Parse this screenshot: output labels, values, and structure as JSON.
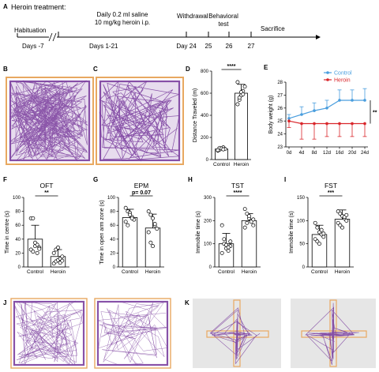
{
  "panels": {
    "A": "A",
    "B": "B",
    "C": "C",
    "D": "D",
    "E": "E",
    "F": "F",
    "G": "G",
    "H": "H",
    "I": "I",
    "J": "J",
    "K": "K"
  },
  "timeline": {
    "heading": "Heroin treatment:",
    "habituation": "Habituation",
    "habituation_days": "Days -7",
    "treatment_line1": "Daily 0.2 ml saline",
    "treatment_line2": "10 mg/kg heroin i.p.",
    "treatment_days": "Days 1-21",
    "withdrawal": "Withdrawal",
    "behavioral_line1": "Behavioral",
    "behavioral_line2": "test",
    "sacrifice": "Sacrifice",
    "day24": "Day 24",
    "d25": "25",
    "d26": "26",
    "d27": "27"
  },
  "colors": {
    "track": "#7b3f9e",
    "arena_border": "#e8a860",
    "control_line": "#4a9ede",
    "heroin_line": "#d9262b",
    "bar": "#ffffff",
    "maze_bg": "#e6e6e6"
  },
  "chart_data": [
    {
      "id": "D",
      "type": "bar",
      "ylabel": "Distance Traveled (m)",
      "categories": [
        "Control",
        "Heroin"
      ],
      "values": [
        95,
        600
      ],
      "errors": [
        15,
        80
      ],
      "ylim": [
        0,
        800
      ],
      "yticks": [
        0,
        200,
        400,
        600,
        800
      ],
      "points": [
        [
          80,
          90,
          100,
          110,
          95,
          85,
          105,
          100,
          92
        ],
        [
          500,
          540,
          580,
          620,
          660,
          700,
          560,
          610,
          590
        ]
      ],
      "significance": "****"
    },
    {
      "id": "E",
      "type": "line",
      "ylabel": "Body weight (g)",
      "categories": [
        "0d",
        "4d",
        "8d",
        "12d",
        "16d",
        "20d",
        "24d"
      ],
      "ylim": [
        23,
        28
      ],
      "yticks": [
        23,
        24,
        25,
        26,
        27,
        28
      ],
      "series": [
        {
          "name": "Control",
          "values": [
            25.2,
            25.5,
            25.8,
            26.0,
            26.6,
            26.6,
            26.6
          ],
          "errors": [
            0.3,
            0.6,
            0.6,
            0.6,
            0.8,
            0.8,
            0.9
          ]
        },
        {
          "name": "Heroin",
          "values": [
            25.0,
            24.8,
            24.8,
            24.8,
            24.8,
            24.8,
            24.8
          ],
          "errors": [
            0.5,
            1.2,
            1.2,
            1.0,
            1.0,
            1.0,
            1.0
          ]
        }
      ],
      "significance": "**"
    },
    {
      "id": "F",
      "type": "bar",
      "title": "OFT",
      "ylabel": "Time in centre (s)",
      "categories": [
        "Control",
        "Heroin"
      ],
      "values": [
        40,
        15
      ],
      "errors": [
        20,
        10
      ],
      "ylim": [
        0,
        100
      ],
      "yticks": [
        0,
        20,
        40,
        60,
        80,
        100
      ],
      "points": [
        [
          70,
          70,
          30,
          32,
          28,
          25,
          22,
          35,
          20,
          26
        ],
        [
          5,
          8,
          10,
          12,
          15,
          20,
          25,
          28,
          6,
          9
        ]
      ],
      "significance": "**"
    },
    {
      "id": "G",
      "type": "bar",
      "title": "EPM",
      "ylabel": "Time in open arm zone (s)",
      "categories": [
        "Control",
        "Heroin"
      ],
      "values": [
        71,
        56
      ],
      "errors": [
        12,
        20
      ],
      "ylim": [
        0,
        100
      ],
      "yticks": [
        0,
        20,
        40,
        60,
        80,
        100
      ],
      "points": [
        [
          85,
          80,
          78,
          72,
          68,
          65,
          60,
          75,
          70
        ],
        [
          80,
          75,
          70,
          60,
          55,
          50,
          35,
          30,
          62
        ]
      ],
      "significance": "p= 0.07"
    },
    {
      "id": "H",
      "type": "bar",
      "title": "TST",
      "ylabel": "Immobile time (s)",
      "categories": [
        "Control",
        "Heroin"
      ],
      "values": [
        100,
        200
      ],
      "errors": [
        45,
        30
      ],
      "ylim": [
        0,
        300
      ],
      "yticks": [
        0,
        100,
        200,
        300
      ],
      "points": [
        [
          180,
          120,
          80,
          70,
          90,
          60,
          100,
          95,
          85,
          110
        ],
        [
          250,
          230,
          210,
          200,
          180,
          170,
          190,
          220,
          195,
          205
        ]
      ],
      "significance": "****"
    },
    {
      "id": "I",
      "type": "bar",
      "title": "FST",
      "ylabel": "Immobile time (s)",
      "categories": [
        "Control",
        "Heroin"
      ],
      "values": [
        70,
        103
      ],
      "errors": [
        20,
        20
      ],
      "ylim": [
        0,
        150
      ],
      "yticks": [
        0,
        50,
        100,
        150
      ],
      "points": [
        [
          95,
          85,
          75,
          70,
          65,
          60,
          55,
          50,
          80,
          72
        ],
        [
          120,
          115,
          110,
          105,
          100,
          95,
          90,
          85,
          108,
          112
        ]
      ],
      "significance": "***"
    }
  ]
}
